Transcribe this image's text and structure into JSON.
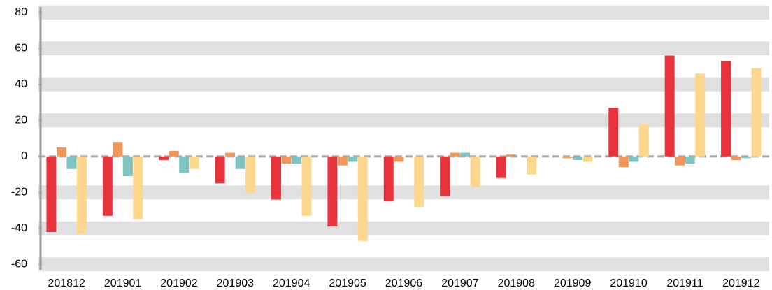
{
  "chart_data": {
    "type": "bar",
    "categories": [
      "201812",
      "201901",
      "201902",
      "201903",
      "201904",
      "201905",
      "201906",
      "201907",
      "201908",
      "201909",
      "201910",
      "201911",
      "201912"
    ],
    "series": [
      {
        "color": "#e8323c",
        "values": [
          -42,
          -33,
          -2,
          -15,
          -24,
          -39,
          -25,
          -22,
          -12,
          0,
          27,
          56,
          53
        ]
      },
      {
        "color": "#f0965a",
        "values": [
          5,
          8,
          3,
          2,
          -4,
          -5,
          -3,
          2,
          1,
          -1,
          -6,
          -5,
          -2
        ]
      },
      {
        "color": "#7fc3c3",
        "values": [
          -7,
          -11,
          -9,
          -7,
          -4,
          -3,
          0,
          2,
          0,
          -2,
          -3,
          -4,
          -1
        ]
      },
      {
        "color": "#fdd88c",
        "values": [
          -43,
          -35,
          -7,
          -20,
          -33,
          -47,
          -28,
          -17,
          -10,
          -3,
          18,
          46,
          49
        ]
      }
    ],
    "ylim": [
      -63,
      83
    ],
    "yticks": [
      -60,
      -40,
      -20,
      0,
      20,
      40,
      60,
      80
    ],
    "grid": true
  }
}
